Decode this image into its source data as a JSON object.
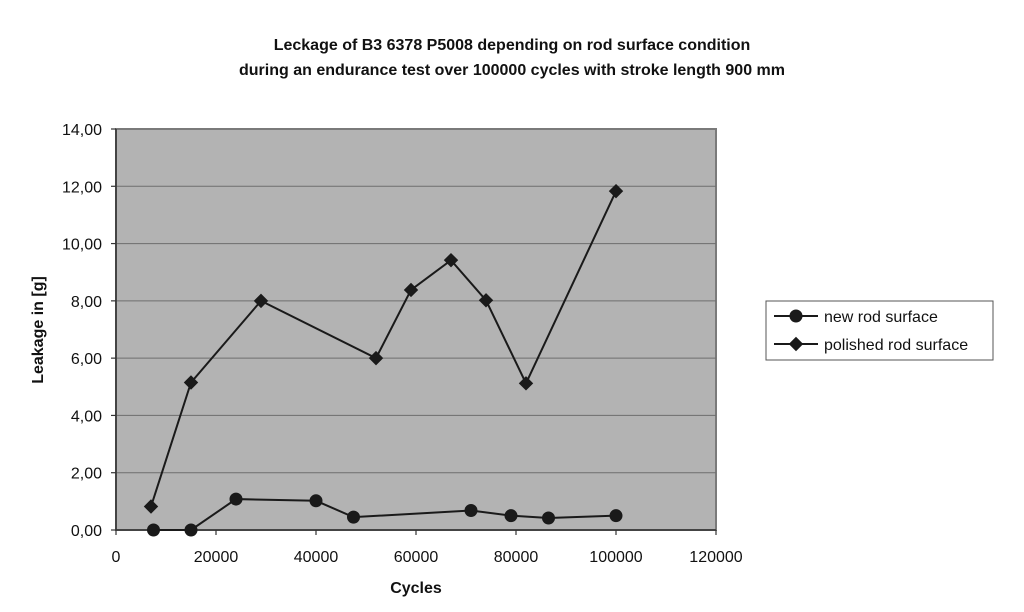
{
  "chart_data": {
    "type": "line",
    "title": [
      "Leckage of B3 6378 P5008 depending on rod surface condition",
      "during an endurance test over 100000 cycles with stroke length 900 mm"
    ],
    "xlabel": "Cycles",
    "ylabel": "Leakage in [g]",
    "xlim": [
      0,
      120000
    ],
    "ylim": [
      0,
      14
    ],
    "x_ticks": [
      0,
      20000,
      40000,
      60000,
      80000,
      100000,
      120000
    ],
    "x_tick_labels": [
      "0",
      "20000",
      "40000",
      "60000",
      "80000",
      "100000",
      "120000"
    ],
    "y_ticks": [
      0,
      2,
      4,
      6,
      8,
      10,
      12,
      14
    ],
    "y_tick_labels": [
      "0,00",
      "2,00",
      "4,00",
      "6,00",
      "8,00",
      "10,00",
      "12,00",
      "14,00"
    ],
    "grid": "horizontal",
    "legend_position": "right",
    "plot_background": "#b3b3b3",
    "series": [
      {
        "name": "new rod surface",
        "marker": "circle",
        "color": "#1a1a1a",
        "points": [
          {
            "x": 7500,
            "y": 0.0
          },
          {
            "x": 15000,
            "y": 0.0
          },
          {
            "x": 24000,
            "y": 1.08
          },
          {
            "x": 40000,
            "y": 1.02
          },
          {
            "x": 47500,
            "y": 0.45
          },
          {
            "x": 71000,
            "y": 0.68
          },
          {
            "x": 79000,
            "y": 0.5
          },
          {
            "x": 86500,
            "y": 0.42
          },
          {
            "x": 100000,
            "y": 0.5
          }
        ]
      },
      {
        "name": "polished rod surface",
        "marker": "diamond",
        "color": "#1a1a1a",
        "points": [
          {
            "x": 7000,
            "y": 0.82
          },
          {
            "x": 15000,
            "y": 5.15
          },
          {
            "x": 29000,
            "y": 8.0
          },
          {
            "x": 52000,
            "y": 6.0
          },
          {
            "x": 59000,
            "y": 8.38
          },
          {
            "x": 67000,
            "y": 9.42
          },
          {
            "x": 74000,
            "y": 8.02
          },
          {
            "x": 82000,
            "y": 5.12
          },
          {
            "x": 100000,
            "y": 11.83
          }
        ]
      }
    ]
  }
}
